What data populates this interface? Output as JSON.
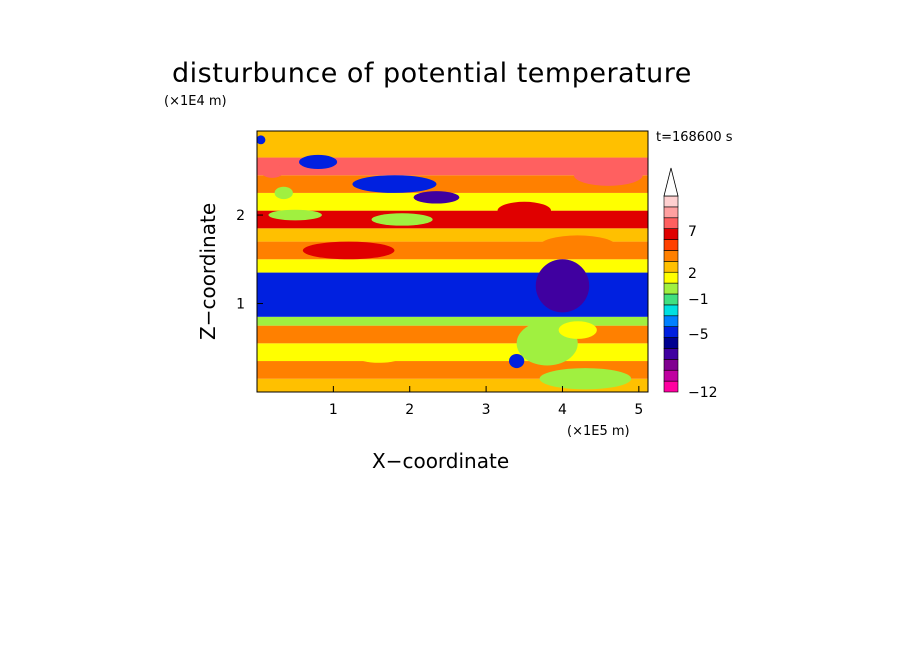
{
  "chart_data": {
    "type": "heatmap",
    "title": "disturbunce of potential temperature",
    "xlabel": "X−coordinate",
    "ylabel": "Z−coordinate",
    "x_unit": "(×1E5 m)",
    "y_unit": "(×1E4 m)",
    "time_label": "t=168600 s",
    "xlim": [
      0,
      5.12
    ],
    "ylim": [
      0,
      2.95
    ],
    "x_ticks": [
      "1",
      "2",
      "3",
      "4",
      "5"
    ],
    "y_ticks": [
      "1",
      "2"
    ],
    "grid": false,
    "legend_position": "right colorbar",
    "colorbar": {
      "levels": [
        "-12",
        "-5",
        "-1",
        "2",
        "7"
      ],
      "colors": [
        "#ff00a0",
        "#c000a0",
        "#800090",
        "#4000a0",
        "#000090",
        "#0020e0",
        "#0080ff",
        "#00e0e0",
        "#40e080",
        "#a0f040",
        "#ffff00",
        "#ffc000",
        "#ff8000",
        "#ff4000",
        "#e00000",
        "#ff6060",
        "#ffa0a0",
        "#ffd0d0"
      ]
    },
    "bands": [
      {
        "z_from": 0.0,
        "z_to": 0.15,
        "value": 1
      },
      {
        "z_from": 0.15,
        "z_to": 0.35,
        "value": 2
      },
      {
        "z_from": 0.35,
        "z_to": 0.55,
        "value": 0
      },
      {
        "z_from": 0.55,
        "z_to": 0.75,
        "value": 2
      },
      {
        "z_from": 0.75,
        "z_to": 0.85,
        "value": -1
      },
      {
        "z_from": 0.85,
        "z_to": 1.35,
        "value": -5
      },
      {
        "z_from": 1.35,
        "z_to": 1.5,
        "value": 0
      },
      {
        "z_from": 1.5,
        "z_to": 1.7,
        "value": 2
      },
      {
        "z_from": 1.7,
        "z_to": 1.85,
        "value": 1
      },
      {
        "z_from": 1.85,
        "z_to": 2.05,
        "value": 4
      },
      {
        "z_from": 2.05,
        "z_to": 2.25,
        "value": 0
      },
      {
        "z_from": 2.25,
        "z_to": 2.45,
        "value": 2
      },
      {
        "z_from": 2.45,
        "z_to": 2.65,
        "value": 5
      },
      {
        "z_from": 2.65,
        "z_to": 2.95,
        "value": 1
      }
    ],
    "features": [
      {
        "type": "blob",
        "x": 0.8,
        "z": 2.6,
        "rx": 0.25,
        "rz": 0.08,
        "value": -5
      },
      {
        "type": "blob",
        "x": 1.8,
        "z": 2.35,
        "rx": 0.55,
        "rz": 0.1,
        "value": -5
      },
      {
        "type": "blob",
        "x": 2.35,
        "z": 2.2,
        "rx": 0.3,
        "rz": 0.07,
        "value": -7
      },
      {
        "type": "blob",
        "x": 0.5,
        "z": 2.0,
        "rx": 0.35,
        "rz": 0.06,
        "value": -1
      },
      {
        "type": "blob",
        "x": 1.9,
        "z": 1.95,
        "rx": 0.4,
        "rz": 0.07,
        "value": -1
      },
      {
        "type": "blob",
        "x": 1.2,
        "z": 1.6,
        "rx": 0.6,
        "rz": 0.1,
        "value": 4
      },
      {
        "type": "blob",
        "x": 0.2,
        "z": 2.5,
        "rx": 0.15,
        "rz": 0.08,
        "value": 5
      },
      {
        "type": "blob",
        "x": 4.6,
        "z": 2.45,
        "rx": 0.45,
        "rz": 0.12,
        "value": 5
      },
      {
        "type": "blob",
        "x": 3.5,
        "z": 2.05,
        "rx": 0.35,
        "rz": 0.1,
        "value": 4
      },
      {
        "type": "blob",
        "x": 4.2,
        "z": 1.65,
        "rx": 0.5,
        "rz": 0.12,
        "value": 2
      },
      {
        "type": "blob",
        "x": 4.0,
        "z": 1.2,
        "rx": 0.35,
        "rz": 0.3,
        "value": -7
      },
      {
        "type": "blob",
        "x": 3.8,
        "z": 0.55,
        "rx": 0.4,
        "rz": 0.25,
        "value": -1
      },
      {
        "type": "blob",
        "x": 3.4,
        "z": 0.35,
        "rx": 0.1,
        "rz": 0.08,
        "value": -5
      },
      {
        "type": "blob",
        "x": 4.2,
        "z": 0.7,
        "rx": 0.25,
        "rz": 0.1,
        "value": 0
      },
      {
        "type": "blob",
        "x": 4.3,
        "z": 0.15,
        "rx": 0.6,
        "rz": 0.12,
        "value": -1
      },
      {
        "type": "blob",
        "x": 1.6,
        "z": 0.4,
        "rx": 0.3,
        "rz": 0.07,
        "value": 0
      },
      {
        "type": "blob",
        "x": 0.35,
        "z": 2.25,
        "rx": 0.12,
        "rz": 0.07,
        "value": -1
      },
      {
        "type": "blob",
        "x": 0.05,
        "z": 2.85,
        "rx": 0.06,
        "rz": 0.05,
        "value": -5
      }
    ]
  }
}
